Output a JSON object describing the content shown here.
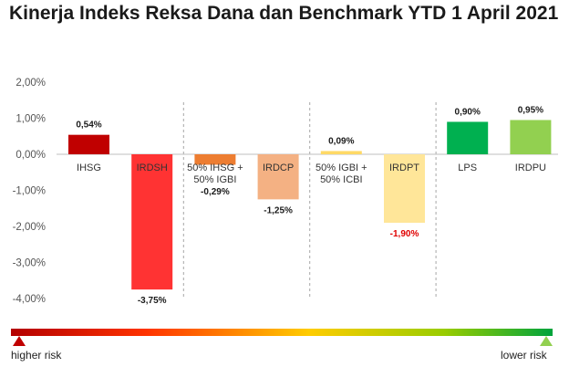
{
  "title": "Kinerja Indeks Reksa Dana dan Benchmark YTD 1 April 2021",
  "chart_data": {
    "type": "bar",
    "title": "Kinerja Indeks Reksa Dana dan Benchmark YTD 1 April 2021",
    "ylim": [
      -4,
      2
    ],
    "yticks": [
      "2,00%",
      "1,00%",
      "0,00%",
      "-1,00%",
      "-2,00%",
      "-3,00%",
      "-4,00%"
    ],
    "ytick_values": [
      2,
      1,
      0,
      -1,
      -2,
      -3,
      -4
    ],
    "grid": false,
    "categories": [
      "IHSG",
      "IRDSH",
      "50% IHSG + 50% IGBI",
      "IRDCP",
      "50% IGBI + 50% ICBI",
      "IRDPT",
      "LPS",
      "IRDPU"
    ],
    "category_lines": [
      [
        "IHSG"
      ],
      [
        "IRDSH"
      ],
      [
        "50% IHSG +",
        "50% IGBI"
      ],
      [
        "IRDCP"
      ],
      [
        "50% IGBI +",
        "50% ICBI"
      ],
      [
        "IRDPT"
      ],
      [
        "LPS"
      ],
      [
        "IRDPU"
      ]
    ],
    "values": [
      0.54,
      -3.75,
      -0.29,
      -1.25,
      0.09,
      -1.9,
      0.9,
      0.95
    ],
    "value_labels": [
      "0,54%",
      "-3,75%",
      "-0,29%",
      "-1,25%",
      "0,09%",
      "-1,90%",
      "0,90%",
      "0,95%"
    ],
    "colors": [
      "#c00000",
      "#ff3333",
      "#ed7d31",
      "#f4b183",
      "#ffd966",
      "#ffe699",
      "#00b050",
      "#92d050"
    ],
    "value_label_colors": [
      "#1a1a1a",
      "#1a1a1a",
      "#1a1a1a",
      "#1a1a1a",
      "#1a1a1a",
      "#e00000",
      "#1a1a1a",
      "#1a1a1a"
    ]
  },
  "risk_scale": {
    "left_label": "higher risk",
    "right_label": "lower risk",
    "left_color": "#c00000",
    "right_color": "#92d050"
  }
}
